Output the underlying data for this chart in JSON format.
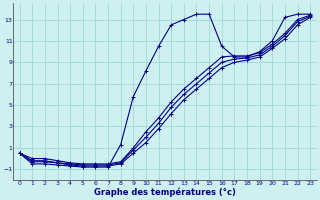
{
  "xlabel": "Graphe des températures (°c)",
  "background_color": "#cff0f0",
  "grid_color": "#9ed8d8",
  "line_color": "#00008b",
  "xlim": [
    -0.5,
    23.5
  ],
  "ylim": [
    -2.0,
    14.5
  ],
  "xticks": [
    0,
    1,
    2,
    3,
    4,
    5,
    6,
    7,
    8,
    9,
    10,
    11,
    12,
    13,
    14,
    15,
    16,
    17,
    18,
    19,
    20,
    21,
    22,
    23
  ],
  "yticks": [
    -1,
    1,
    3,
    5,
    7,
    9,
    11,
    13
  ],
  "line1_x": [
    0,
    1,
    2,
    3,
    4,
    5,
    6,
    7,
    8,
    9,
    10,
    11,
    12,
    13,
    14,
    15,
    16,
    17,
    18,
    19,
    20,
    21,
    22,
    23
  ],
  "line1_y": [
    0.5,
    -0.5,
    -0.5,
    -0.6,
    -0.7,
    -0.8,
    -0.8,
    -0.8,
    1.3,
    5.8,
    8.2,
    10.5,
    12.5,
    13.0,
    13.5,
    13.5,
    10.5,
    9.5,
    9.5,
    10.0,
    11.0,
    13.2,
    13.5,
    13.5
  ],
  "line2_x": [
    0,
    1,
    2,
    3,
    4,
    5,
    6,
    7,
    8,
    9,
    10,
    11,
    12,
    13,
    14,
    15,
    16,
    17,
    18,
    19,
    20,
    21,
    22,
    23
  ],
  "line2_y": [
    0.5,
    -0.3,
    -0.3,
    -0.4,
    -0.6,
    -0.7,
    -0.7,
    -0.7,
    -0.5,
    0.5,
    1.5,
    2.8,
    4.2,
    5.5,
    6.5,
    7.5,
    8.5,
    9.0,
    9.2,
    9.5,
    10.3,
    11.2,
    12.5,
    13.2
  ],
  "line3_x": [
    0,
    1,
    2,
    3,
    4,
    5,
    6,
    7,
    8,
    9,
    10,
    11,
    12,
    13,
    14,
    15,
    16,
    17,
    18,
    19,
    20,
    21,
    22,
    23
  ],
  "line3_y": [
    0.5,
    -0.2,
    -0.2,
    -0.4,
    -0.5,
    -0.6,
    -0.6,
    -0.6,
    -0.4,
    0.8,
    2.0,
    3.3,
    4.8,
    6.0,
    7.0,
    8.0,
    9.0,
    9.3,
    9.4,
    9.7,
    10.5,
    11.5,
    12.8,
    13.3
  ],
  "line4_x": [
    0,
    1,
    2,
    3,
    4,
    5,
    6,
    7,
    8,
    9,
    10,
    11,
    12,
    13,
    14,
    15,
    16,
    17,
    18,
    19,
    20,
    21,
    22,
    23
  ],
  "line4_y": [
    0.5,
    0.0,
    0.0,
    -0.2,
    -0.4,
    -0.5,
    -0.5,
    -0.5,
    -0.3,
    1.0,
    2.5,
    3.8,
    5.3,
    6.5,
    7.5,
    8.5,
    9.5,
    9.6,
    9.6,
    9.9,
    10.7,
    11.7,
    13.0,
    13.4
  ]
}
